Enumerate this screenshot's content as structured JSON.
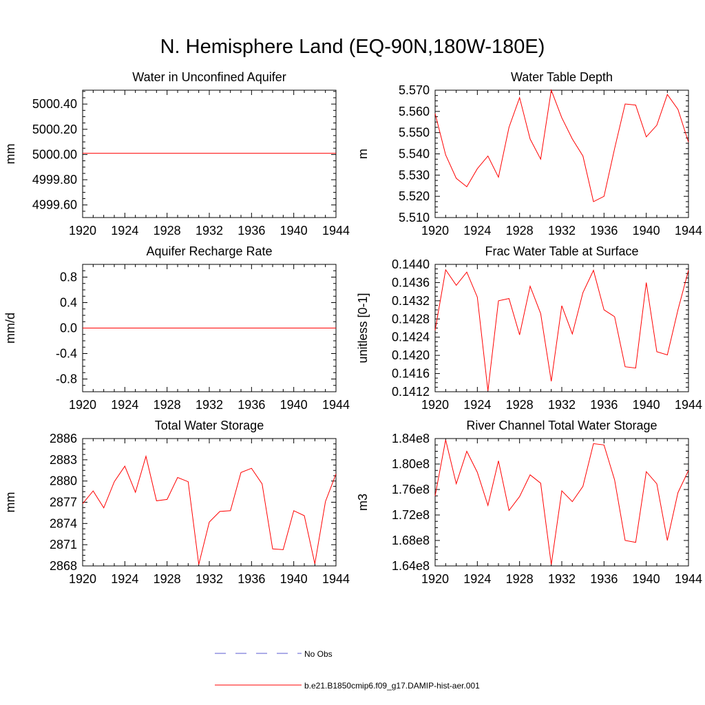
{
  "page": {
    "title": "N. Hemisphere Land (EQ-90N,180W-180E)"
  },
  "colors": {
    "model": "#ff0000",
    "obs": "#5a5ad0",
    "axis": "#000000"
  },
  "legend": {
    "obs_label": "No Obs",
    "model_label": "b.e21.B1850cmip6.f09_g17.DAMIP-hist-aer.001"
  },
  "chart_data": [
    {
      "type": "line",
      "title": "Water in Unconfined Aquifer",
      "xlabel": "",
      "ylabel": "mm",
      "xlim": [
        1920,
        1944
      ],
      "ylim": [
        4999.5,
        5000.51
      ],
      "xticks": [
        1920,
        1924,
        1928,
        1932,
        1936,
        1940,
        1944
      ],
      "yticks": [
        4999.6,
        4999.8,
        5000.0,
        5000.2,
        5000.4
      ],
      "yticklabels": [
        "4999.60",
        "4999.80",
        "5000.00",
        "5000.20",
        "5000.40"
      ],
      "grid": false,
      "series": [
        {
          "x": [
            1920,
            1921,
            1922,
            1923,
            1924,
            1925,
            1926,
            1927,
            1928,
            1929,
            1930,
            1931,
            1932,
            1933,
            1934,
            1935,
            1936,
            1937,
            1938,
            1939,
            1940,
            1941,
            1942,
            1943,
            1944
          ],
          "y": [
            5000.01,
            5000.01,
            5000.01,
            5000.01,
            5000.01,
            5000.01,
            5000.01,
            5000.01,
            5000.01,
            5000.01,
            5000.01,
            5000.01,
            5000.01,
            5000.01,
            5000.01,
            5000.01,
            5000.01,
            5000.01,
            5000.01,
            5000.01,
            5000.01,
            5000.01,
            5000.01,
            5000.01,
            5000.01
          ]
        }
      ]
    },
    {
      "type": "line",
      "title": "Water Table Depth",
      "xlabel": "",
      "ylabel": "m",
      "xlim": [
        1920,
        1944
      ],
      "ylim": [
        5.51,
        5.57
      ],
      "xticks": [
        1920,
        1924,
        1928,
        1932,
        1936,
        1940,
        1944
      ],
      "yticks": [
        5.51,
        5.52,
        5.53,
        5.54,
        5.55,
        5.56,
        5.57
      ],
      "yticklabels": [
        "5.510",
        "5.520",
        "5.530",
        "5.540",
        "5.550",
        "5.560",
        "5.570"
      ],
      "grid": false,
      "series": [
        {
          "x": [
            1920,
            1921,
            1922,
            1923,
            1924,
            1925,
            1926,
            1927,
            1928,
            1929,
            1930,
            1931,
            1932,
            1933,
            1934,
            1935,
            1936,
            1937,
            1938,
            1939,
            1940,
            1941,
            1942,
            1943,
            1944
          ],
          "y": [
            5.559,
            5.5395,
            5.5285,
            5.5245,
            5.533,
            5.539,
            5.529,
            5.5525,
            5.5665,
            5.547,
            5.5375,
            5.57,
            5.557,
            5.547,
            5.539,
            5.5175,
            5.52,
            5.5425,
            5.5635,
            5.563,
            5.548,
            5.5535,
            5.568,
            5.561,
            5.5455
          ]
        }
      ]
    },
    {
      "type": "line",
      "title": "Aquifer Recharge Rate",
      "xlabel": "",
      "ylabel": "mm/d",
      "xlim": [
        1920,
        1944
      ],
      "ylim": [
        -1.0,
        1.0
      ],
      "xticks": [
        1920,
        1924,
        1928,
        1932,
        1936,
        1940,
        1944
      ],
      "yticks": [
        -0.8,
        -0.4,
        0.0,
        0.4,
        0.8
      ],
      "yticklabels": [
        "-0.8",
        "-0.4",
        "0.0",
        "0.4",
        "0.8"
      ],
      "grid": false,
      "series": [
        {
          "x": [
            1920,
            1921,
            1922,
            1923,
            1924,
            1925,
            1926,
            1927,
            1928,
            1929,
            1930,
            1931,
            1932,
            1933,
            1934,
            1935,
            1936,
            1937,
            1938,
            1939,
            1940,
            1941,
            1942,
            1943,
            1944
          ],
          "y": [
            0,
            0,
            0,
            0,
            0,
            0,
            0,
            0,
            0,
            0,
            0,
            0,
            0,
            0,
            0,
            0,
            0,
            0,
            0,
            0,
            0,
            0,
            0,
            0,
            0
          ]
        }
      ]
    },
    {
      "type": "line",
      "title": "Frac Water Table at Surface",
      "xlabel": "",
      "ylabel": "unitless [0-1]",
      "xlim": [
        1920,
        1944
      ],
      "ylim": [
        0.1412,
        0.144
      ],
      "xticks": [
        1920,
        1924,
        1928,
        1932,
        1936,
        1940,
        1944
      ],
      "yticks": [
        0.1412,
        0.1416,
        0.142,
        0.1424,
        0.1428,
        0.1432,
        0.1436,
        0.144
      ],
      "yticklabels": [
        "0.1412",
        "0.1416",
        "0.1420",
        "0.1424",
        "0.1428",
        "0.1432",
        "0.1436",
        "0.1440"
      ],
      "grid": false,
      "series": [
        {
          "x": [
            1920,
            1921,
            1922,
            1923,
            1924,
            1925,
            1926,
            1927,
            1928,
            1929,
            1930,
            1931,
            1932,
            1933,
            1934,
            1935,
            1936,
            1937,
            1938,
            1939,
            1940,
            1941,
            1942,
            1943,
            1944
          ],
          "y": [
            0.14255,
            0.14388,
            0.14354,
            0.14383,
            0.14328,
            0.14122,
            0.1432,
            0.14325,
            0.14245,
            0.14352,
            0.14292,
            0.14143,
            0.14309,
            0.14247,
            0.14338,
            0.14387,
            0.143,
            0.14285,
            0.14175,
            0.14172,
            0.1436,
            0.14208,
            0.14201,
            0.143,
            0.14387
          ]
        }
      ]
    },
    {
      "type": "line",
      "title": "Total Water Storage",
      "xlabel": "",
      "ylabel": "mm",
      "xlim": [
        1920,
        1944
      ],
      "ylim": [
        2868,
        2886
      ],
      "xticks": [
        1920,
        1924,
        1928,
        1932,
        1936,
        1940,
        1944
      ],
      "yticks": [
        2868,
        2871,
        2874,
        2877,
        2880,
        2883,
        2886
      ],
      "yticklabels": [
        "2868",
        "2871",
        "2874",
        "2877",
        "2880",
        "2883",
        "2886"
      ],
      "grid": false,
      "series": [
        {
          "x": [
            1920,
            1921,
            1922,
            1923,
            1924,
            1925,
            1926,
            1927,
            1928,
            1929,
            1930,
            1931,
            1932,
            1933,
            1934,
            1935,
            1936,
            1937,
            1938,
            1939,
            1940,
            1941,
            1942,
            1943,
            1944
          ],
          "y": [
            2876.8,
            2878.6,
            2876.2,
            2879.9,
            2882.1,
            2878.4,
            2883.5,
            2877.2,
            2877.4,
            2880.5,
            2879.9,
            2868.2,
            2874.2,
            2875.7,
            2875.8,
            2881.2,
            2881.8,
            2879.6,
            2870.4,
            2870.3,
            2875.8,
            2875.1,
            2868.3,
            2877.1,
            2881.0
          ]
        }
      ]
    },
    {
      "type": "line",
      "title": "River Channel Total Water Storage",
      "xlabel": "",
      "ylabel": "m3",
      "xlim": [
        1920,
        1944
      ],
      "ylim": [
        164000000,
        184000000
      ],
      "xticks": [
        1920,
        1924,
        1928,
        1932,
        1936,
        1940,
        1944
      ],
      "yticks": [
        164000000,
        168000000,
        172000000,
        176000000,
        180000000,
        184000000
      ],
      "yticklabels": [
        "1.64e8",
        "1.68e8",
        "1.72e8",
        "1.76e8",
        "1.80e8",
        "1.84e8"
      ],
      "grid": false,
      "series": [
        {
          "x": [
            1920,
            1921,
            1922,
            1923,
            1924,
            1925,
            1926,
            1927,
            1928,
            1929,
            1930,
            1931,
            1932,
            1933,
            1934,
            1935,
            1936,
            1937,
            1938,
            1939,
            1940,
            1941,
            1942,
            1943,
            1944
          ],
          "y": [
            175000000,
            183800000,
            176900000,
            182000000,
            178700000,
            173500000,
            180500000,
            172700000,
            174900000,
            178300000,
            177000000,
            164200000,
            175800000,
            174100000,
            176500000,
            183200000,
            183000000,
            177500000,
            168000000,
            167700000,
            178800000,
            176900000,
            168000000,
            175500000,
            179000000
          ]
        }
      ]
    }
  ]
}
